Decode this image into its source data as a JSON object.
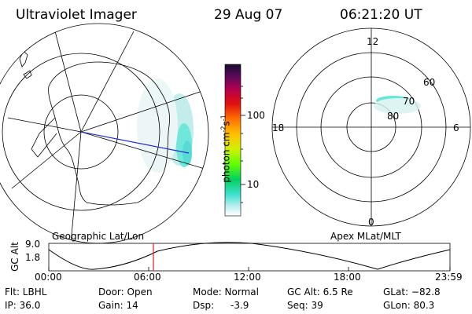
{
  "header": {
    "instrument": "Ultraviolet Imager",
    "date": "29 Aug 07",
    "time": "06:21:20 UT"
  },
  "colorbar": {
    "label": "photon cm",
    "sup1": "-2",
    "s": "s",
    "sup2": "-1",
    "ticks": [
      "100",
      "10"
    ]
  },
  "polar": {
    "mlt_labels": [
      "12",
      "18",
      "6",
      "0"
    ],
    "lat_labels": [
      "60",
      "70",
      "80"
    ]
  },
  "map_labels": {
    "left": "Geographic Lat/Lon",
    "right": "Apex MLat/MLT"
  },
  "altitude_plot": {
    "ylabel": "GC Alt",
    "y_ticks": [
      "9.0",
      "1.8"
    ],
    "x_ticks": [
      "00:00",
      "06:00",
      "12:00",
      "18:00",
      "23:59"
    ],
    "current_time_fraction": 0.265
  },
  "info": {
    "flt": "Flt: LBHL",
    "ip": "IP: 36.0",
    "door": "Door: Open",
    "gain": "Gain: 14",
    "mode": "Mode: Normal",
    "dsp": "Dsp:",
    "dsp_val": "-3.9",
    "gcalt": "GC Alt: 6.5 Re",
    "seq": "Seq: 39",
    "glat": "GLat: −82.8",
    "glon": "GLon: 80.3"
  },
  "colors": {
    "colorbar_top": "#1a0a2e",
    "colorbar_bottom": "#ffffff",
    "aurora": "#40e0d0",
    "line_blue": "#2233cc",
    "marker_red": "#dd2222"
  }
}
